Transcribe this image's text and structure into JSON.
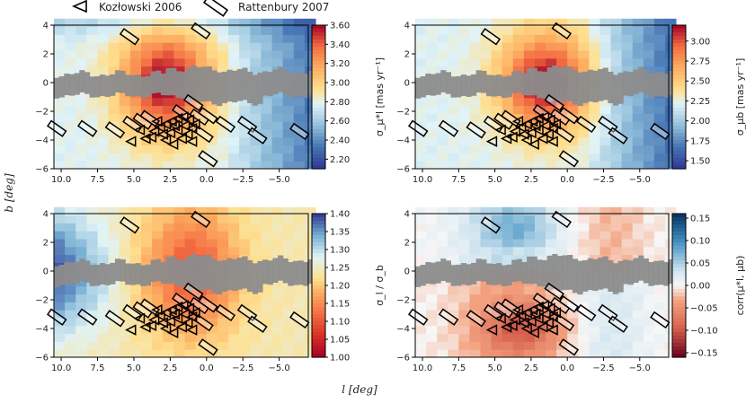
{
  "legend": {
    "entries": [
      {
        "label": "Kozłowski 2006",
        "marker": "triangle"
      },
      {
        "label": "Rattenbury 2007",
        "marker": "rectangle"
      }
    ]
  },
  "figure": {
    "shared_ylabel": "b [deg]",
    "shared_xlabel": "l [deg]"
  },
  "chart_data": [
    {
      "type": "heatmap",
      "id": "sigma_l",
      "colorbar_label": "σ_μ*l [mas yr⁻¹]",
      "xlim": [
        10.5,
        -7.0
      ],
      "ylim": [
        -6,
        4
      ],
      "x_ticks": [
        10.0,
        7.5,
        5.0,
        2.5,
        0.0,
        -2.5,
        -5.0
      ],
      "x_tick_labels": [
        "10.0",
        "7.5",
        "5.0",
        "2.5",
        "0.0",
        "−2.5",
        "−5.0"
      ],
      "y_ticks": [
        4,
        2,
        0,
        -2,
        -4,
        -6
      ],
      "y_tick_labels": [
        "4",
        "2",
        "0",
        "−2",
        "−4",
        "−6"
      ],
      "colorbar_range": [
        2.1,
        3.6
      ],
      "colorbar_ticks": [
        "3.60",
        "3.40",
        "3.20",
        "3.00",
        "2.80",
        "2.60",
        "2.40",
        "2.20"
      ],
      "colorbar_tick_values": [
        3.6,
        3.4,
        3.2,
        3.0,
        2.8,
        2.6,
        2.4,
        2.2
      ],
      "colormap": "coolwarm-spectral"
    },
    {
      "type": "heatmap",
      "id": "sigma_b",
      "colorbar_label": "σ_μb [mas yr⁻¹]",
      "xlim": [
        10.5,
        -7.0
      ],
      "ylim": [
        -6,
        4
      ],
      "x_ticks": [
        10.0,
        7.5,
        5.0,
        2.5,
        0.0,
        -2.5,
        -5.0
      ],
      "x_tick_labels": [
        "10.0",
        "7.5",
        "5.0",
        "2.5",
        "0.0",
        "−2.5",
        "−5.0"
      ],
      "y_ticks": [
        4,
        2,
        0,
        -2,
        -4,
        -6
      ],
      "y_tick_labels": [
        "4",
        "2",
        "0",
        "−2",
        "−4",
        "−6"
      ],
      "colorbar_range": [
        1.4,
        3.2
      ],
      "colorbar_ticks": [
        "3.00",
        "2.75",
        "2.50",
        "2.25",
        "2.00",
        "1.75",
        "1.50"
      ],
      "colorbar_tick_values": [
        3.0,
        2.75,
        2.5,
        2.25,
        2.0,
        1.75,
        1.5
      ],
      "colormap": "coolwarm-spectral"
    },
    {
      "type": "heatmap",
      "id": "ratio",
      "colorbar_label": "σ_l / σ_b",
      "xlim": [
        10.5,
        -7.0
      ],
      "ylim": [
        -6,
        4
      ],
      "x_ticks": [
        10.0,
        7.5,
        5.0,
        2.5,
        0.0,
        -2.5,
        -5.0
      ],
      "x_tick_labels": [
        "10.0",
        "7.5",
        "5.0",
        "2.5",
        "0.0",
        "−2.5",
        "−5.0"
      ],
      "y_ticks": [
        4,
        2,
        0,
        -2,
        -4,
        -6
      ],
      "y_tick_labels": [
        "4",
        "2",
        "0",
        "−2",
        "−4",
        "−6"
      ],
      "colorbar_range": [
        1.0,
        1.4
      ],
      "colorbar_ticks": [
        "1.40",
        "1.35",
        "1.30",
        "1.25",
        "1.20",
        "1.15",
        "1.10",
        "1.05",
        "1.00"
      ],
      "colorbar_tick_values": [
        1.4,
        1.35,
        1.3,
        1.25,
        1.2,
        1.15,
        1.1,
        1.05,
        1.0
      ],
      "colormap": "spectral-reversed"
    },
    {
      "type": "heatmap",
      "id": "corr",
      "colorbar_label": "corr(μ*l, μb)",
      "xlim": [
        10.5,
        -7.0
      ],
      "ylim": [
        -6,
        4
      ],
      "x_ticks": [
        10.0,
        7.5,
        5.0,
        2.5,
        0.0,
        -2.5,
        -5.0
      ],
      "x_tick_labels": [
        "10.0",
        "7.5",
        "5.0",
        "2.5",
        "0.0",
        "−2.5",
        "−5.0"
      ],
      "y_ticks": [
        4,
        2,
        0,
        -2,
        -4,
        -6
      ],
      "y_tick_labels": [
        "4",
        "2",
        "0",
        "−2",
        "−4",
        "−6"
      ],
      "colorbar_range": [
        -0.16,
        0.16
      ],
      "colorbar_ticks": [
        "0.15",
        "0.10",
        "0.05",
        "0.00",
        "−0.05",
        "−0.10",
        "−0.15"
      ],
      "colorbar_tick_values": [
        0.15,
        0.1,
        0.05,
        0.0,
        -0.05,
        -0.1,
        -0.15
      ],
      "colormap": "red-blue"
    }
  ],
  "overlays": {
    "kozlowski_2006": [
      [
        4.6,
        -3.3
      ],
      [
        3.6,
        -3.4
      ],
      [
        3.2,
        -3.1
      ],
      [
        2.8,
        -2.9
      ],
      [
        2.4,
        -2.7
      ],
      [
        2.0,
        -2.5
      ],
      [
        1.6,
        -2.4
      ],
      [
        1.2,
        -2.6
      ],
      [
        3.0,
        -3.6
      ],
      [
        2.5,
        -3.5
      ],
      [
        2.0,
        -3.3
      ],
      [
        1.5,
        -3.0
      ],
      [
        1.0,
        -3.2
      ],
      [
        3.8,
        -3.8
      ],
      [
        2.8,
        -4.0
      ],
      [
        1.7,
        -3.9
      ],
      [
        1.0,
        -4.1
      ],
      [
        5.2,
        -4.1
      ],
      [
        4.2,
        -3.9
      ],
      [
        2.3,
        -4.3
      ],
      [
        1.3,
        -3.6
      ],
      [
        0.8,
        -2.9
      ],
      [
        3.4,
        -2.7
      ],
      [
        2.2,
        -3.0
      ]
    ],
    "rattenbury_2007": [
      [
        5.3,
        3.2
      ],
      [
        0.4,
        3.6
      ],
      [
        10.3,
        -3.2
      ],
      [
        8.2,
        -3.2
      ],
      [
        6.3,
        -3.3
      ],
      [
        5.1,
        -2.9
      ],
      [
        4.4,
        -2.7
      ],
      [
        3.9,
        -2.5
      ],
      [
        1.7,
        -2.1
      ],
      [
        0.9,
        -1.4
      ],
      [
        0.5,
        -2.4
      ],
      [
        -0.1,
        -2.3
      ],
      [
        0.2,
        -3.6
      ],
      [
        -1.3,
        -2.9
      ],
      [
        -2.8,
        -2.9
      ],
      [
        -3.5,
        -3.7
      ],
      [
        -6.4,
        -3.4
      ],
      [
        -0.1,
        -5.3
      ]
    ]
  }
}
